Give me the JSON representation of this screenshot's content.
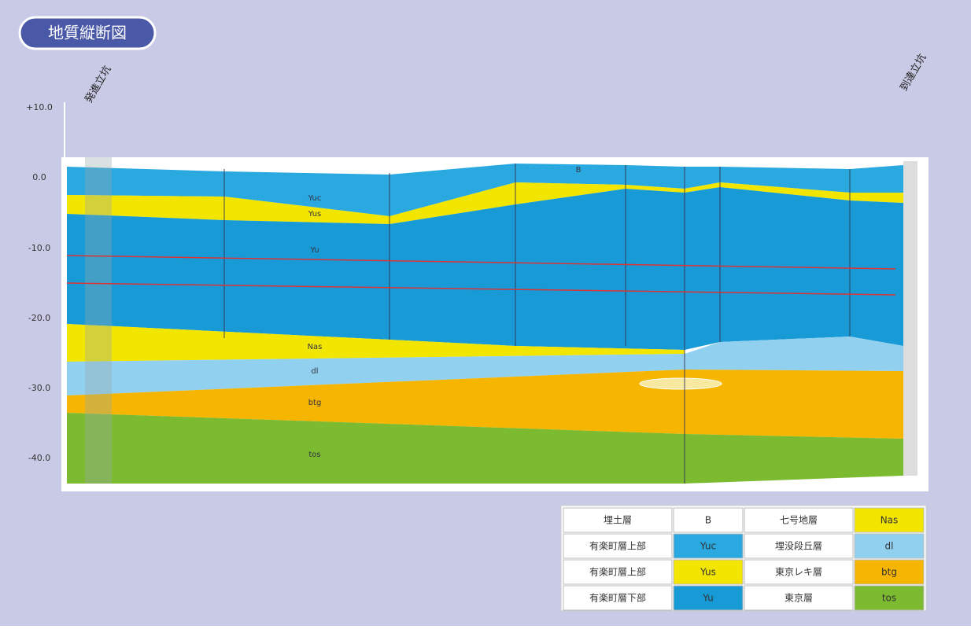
{
  "header": {
    "title": "地質縦断図"
  },
  "depth_labels": [
    "+10.0",
    "0.0",
    "-10.0",
    "-20.0",
    "-30.0",
    "-40.0"
  ],
  "shafts": [
    "発進立坑",
    "到達立坑"
  ],
  "section_labels": {
    "b": "B",
    "yuc": "Yuc",
    "yus": "Yus",
    "yu": "Yu",
    "nas": "Nas",
    "dl": "dl",
    "btg": "btg",
    "tos": "tos"
  },
  "legend": {
    "rows": [
      [
        "埋土層",
        "B",
        "七号地層",
        "Nas"
      ],
      [
        "有楽町層上部",
        "Yuc",
        "埋没段丘層",
        "dl"
      ],
      [
        "有楽町層上部",
        "Yus",
        "東京レキ層",
        "btg"
      ],
      [
        "有楽町層下部",
        "Yu",
        "東京層",
        "tos"
      ]
    ]
  }
}
